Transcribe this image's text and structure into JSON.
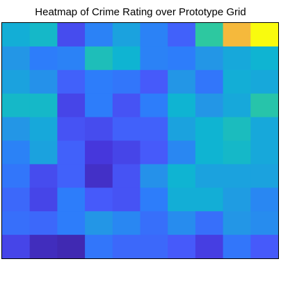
{
  "chart_data": {
    "type": "heatmap",
    "title": "Heatmap of Crime Rating over Prototype Grid",
    "xlabel": "",
    "ylabel": "",
    "rows": 10,
    "cols": 10,
    "colormap": "parula",
    "clim": [
      0,
      1
    ],
    "values": [
      [
        0.48,
        0.52,
        0.16,
        0.32,
        0.44,
        0.32,
        0.22,
        0.6,
        0.9,
        1.0
      ],
      [
        0.4,
        0.3,
        0.32,
        0.55,
        0.5,
        0.32,
        0.3,
        0.4,
        0.46,
        0.5
      ],
      [
        0.44,
        0.38,
        0.22,
        0.3,
        0.28,
        0.2,
        0.4,
        0.28,
        0.48,
        0.46
      ],
      [
        0.52,
        0.52,
        0.14,
        0.3,
        0.18,
        0.3,
        0.5,
        0.4,
        0.46,
        0.58
      ],
      [
        0.4,
        0.46,
        0.18,
        0.16,
        0.22,
        0.22,
        0.44,
        0.5,
        0.54,
        0.46
      ],
      [
        0.32,
        0.44,
        0.22,
        0.1,
        0.14,
        0.2,
        0.34,
        0.5,
        0.52,
        0.46
      ],
      [
        0.28,
        0.16,
        0.22,
        0.06,
        0.18,
        0.38,
        0.5,
        0.44,
        0.44,
        0.44
      ],
      [
        0.24,
        0.14,
        0.3,
        0.2,
        0.18,
        0.3,
        0.48,
        0.48,
        0.42,
        0.34
      ],
      [
        0.26,
        0.24,
        0.3,
        0.4,
        0.34,
        0.26,
        0.36,
        0.26,
        0.4,
        0.36
      ],
      [
        0.14,
        0.04,
        0.02,
        0.28,
        0.24,
        0.24,
        0.2,
        0.12,
        0.28,
        0.2
      ]
    ]
  }
}
